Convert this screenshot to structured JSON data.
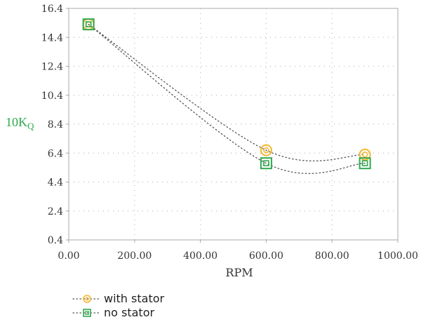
{
  "chart_data": {
    "type": "scatter",
    "xlabel": "RPM",
    "ylabel": "10K",
    "ylabel_sub": "Q",
    "xlim": [
      0,
      1000
    ],
    "ylim": [
      0.4,
      16.4
    ],
    "x_ticks": [
      "0.00",
      "200.00",
      "400.00",
      "600.00",
      "800.00",
      "1000.00"
    ],
    "y_ticks": [
      "0.4",
      "2.4",
      "4.4",
      "6.4",
      "8.4",
      "10.4",
      "12.4",
      "14.4",
      "16.4"
    ],
    "grid": true,
    "legend_position": "bottom-left",
    "series": [
      {
        "name": "with stator",
        "marker": "circle",
        "color": "#f5b731",
        "x": [
          60,
          600,
          900
        ],
        "y": [
          15.3,
          6.6,
          6.3
        ]
      },
      {
        "name": "no stator",
        "marker": "square",
        "color": "#2fa84f",
        "x": [
          60,
          600,
          900
        ],
        "y": [
          15.3,
          5.7,
          5.7
        ]
      }
    ],
    "colors": {
      "ylabel": "#2fa84f",
      "axis": "#aaaaaa",
      "grid": "#bbbbbb",
      "curve": "#555555"
    }
  }
}
